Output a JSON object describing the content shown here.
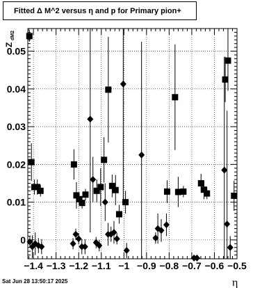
{
  "title": "Fitted Δ M^2 versus η and p for Primary pion+",
  "footer": "Sat Jun 28 13:50:17 2025",
  "chart_data": {
    "type": "scatter",
    "title": "Fitted Δ M^2 versus η and p for Primary pion+",
    "xlabel": "η",
    "ylabel": "Z",
    "ylabel_sub": "dM2",
    "xlim": [
      -1.425,
      -0.5
    ],
    "ylim": [
      -0.005,
      0.056
    ],
    "grid": true,
    "x_ticks": [
      -1.4,
      -1.3,
      -1.2,
      -1.1,
      -1,
      -0.9,
      -0.8,
      -0.7,
      -0.6,
      -0.5
    ],
    "x_tick_labels": [
      "−1.4",
      "−1.3",
      "−1.2",
      "−1.1",
      "−1",
      "−0.9",
      "−0.8",
      "−0.7",
      "−0.6",
      "−0.5"
    ],
    "y_ticks": [
      0,
      0.01,
      0.02,
      0.03,
      0.04,
      0.05
    ],
    "y_tick_labels": [
      "0",
      "0.01",
      "0.02",
      "0.03",
      "0.04",
      "0.05"
    ],
    "series": [
      {
        "marker": "square",
        "points": [
          {
            "x": -1.418,
            "y": 0.054,
            "err": 0.0015
          },
          {
            "x": -1.409,
            "y": 0.0206,
            "err": 0.005
          },
          {
            "x": -1.396,
            "y": 0.014,
            "err": 0.002
          },
          {
            "x": -1.383,
            "y": 0.014,
            "err": 0.002
          },
          {
            "x": -1.369,
            "y": 0.013,
            "err": 0.0015
          },
          {
            "x": -1.221,
            "y": 0.02,
            "err": 0.004
          },
          {
            "x": -1.21,
            "y": 0.0118,
            "err": 0.0035
          },
          {
            "x": -1.198,
            "y": 0.0108,
            "err": 0.0015
          },
          {
            "x": -1.185,
            "y": 0.0098,
            "err": 0.0015
          },
          {
            "x": -1.17,
            "y": 0.012,
            "err": 0.0015
          },
          {
            "x": -1.12,
            "y": 0.013,
            "err": 0.003
          },
          {
            "x": -1.103,
            "y": 0.014,
            "err": 0.005
          },
          {
            "x": -1.088,
            "y": 0.0212,
            "err": 0.006
          },
          {
            "x": -1.069,
            "y": 0.0398,
            "err": 0.014
          },
          {
            "x": -1.052,
            "y": 0.0143,
            "err": 0.003
          },
          {
            "x": -1.037,
            "y": 0.0132,
            "err": 0.004
          },
          {
            "x": -1.021,
            "y": 0.0068,
            "err": 0.0025
          },
          {
            "x": -0.993,
            "y": 0.01,
            "err": 0.003
          },
          {
            "x": -0.809,
            "y": 0.0128,
            "err": 0.003
          },
          {
            "x": -0.774,
            "y": 0.0378,
            "err": 0.014
          },
          {
            "x": -0.76,
            "y": 0.0127,
            "err": 0.004
          },
          {
            "x": -0.737,
            "y": 0.0128,
            "err": 0.0015
          },
          {
            "x": -0.659,
            "y": 0.015,
            "err": 0.0025
          },
          {
            "x": -0.646,
            "y": 0.0133,
            "err": 0.0025
          },
          {
            "x": -0.633,
            "y": 0.0123,
            "err": 0.0015
          },
          {
            "x": -0.552,
            "y": 0.0425,
            "err": 0.006
          },
          {
            "x": -0.54,
            "y": 0.0475,
            "err": 0.008
          },
          {
            "x": -0.513,
            "y": 0.0117,
            "err": 0.004
          }
        ]
      },
      {
        "marker": "diamond",
        "points": [
          {
            "x": -1.416,
            "y": -0.0005,
            "err": 0.0015
          },
          {
            "x": -1.405,
            "y": -0.0018,
            "err": 0.003
          },
          {
            "x": -1.392,
            "y": -0.001,
            "err": 0.003
          },
          {
            "x": -1.378,
            "y": -0.0015,
            "err": 0.002
          },
          {
            "x": -1.364,
            "y": -0.0018,
            "err": 0.002
          },
          {
            "x": -1.225,
            "y": -0.001,
            "err": 0.0015
          },
          {
            "x": -1.213,
            "y": 0.0015,
            "err": 0.0015
          },
          {
            "x": -1.2,
            "y": 0.0003,
            "err": 0.0015
          },
          {
            "x": -1.186,
            "y": -0.0018,
            "err": 0.002
          },
          {
            "x": -1.172,
            "y": -0.0018,
            "err": 0.002
          },
          {
            "x": -1.149,
            "y": 0.032,
            "err": 0.03
          },
          {
            "x": -1.137,
            "y": 0.016,
            "err": 0.006
          },
          {
            "x": -1.123,
            "y": -0.0007,
            "err": 0.0015
          },
          {
            "x": -1.109,
            "y": -0.0015,
            "err": 0.0015
          },
          {
            "x": -1.083,
            "y": 0.01,
            "err": 0.005
          },
          {
            "x": -1.07,
            "y": 0.0015,
            "err": 0.003
          },
          {
            "x": -1.057,
            "y": 0.0015,
            "err": 0.002
          },
          {
            "x": -1.044,
            "y": 0.002,
            "err": 0.003
          },
          {
            "x": -1.031,
            "y": 0.0003,
            "err": 0.0015
          },
          {
            "x": -1.003,
            "y": 0.0413,
            "err": 0.032
          },
          {
            "x": -0.988,
            "y": -0.0028,
            "err": 0.002
          },
          {
            "x": -0.922,
            "y": 0.0225,
            "err": 0.03
          },
          {
            "x": -0.86,
            "y": 0.0005,
            "err": 0.0015
          },
          {
            "x": -0.85,
            "y": 0.003,
            "err": 0.004
          },
          {
            "x": -0.835,
            "y": 0.0025,
            "err": 0.003
          },
          {
            "x": -0.812,
            "y": 0.004,
            "err": 0.003
          },
          {
            "x": -0.69,
            "y": -0.0048,
            "err": 0.0008
          },
          {
            "x": -0.677,
            "y": -0.0048,
            "err": 0.0008
          },
          {
            "x": -0.556,
            "y": 0.0185,
            "err": 0.03
          },
          {
            "x": -0.544,
            "y": 0.0042,
            "err": 0.03
          },
          {
            "x": -0.53,
            "y": -0.002,
            "err": 0.003
          }
        ]
      }
    ]
  }
}
